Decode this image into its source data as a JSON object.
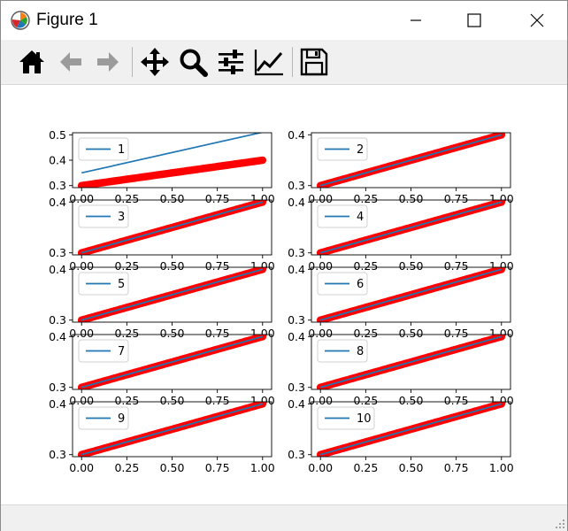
{
  "window": {
    "title": "Figure 1"
  },
  "toolbar": {
    "buttons": [
      {
        "name": "home",
        "icon": "home-icon"
      },
      {
        "name": "back",
        "icon": "arrow-left-icon"
      },
      {
        "name": "forward",
        "icon": "arrow-right-icon"
      },
      {
        "name": "pan",
        "icon": "move-icon"
      },
      {
        "name": "zoom",
        "icon": "magnifier-icon"
      },
      {
        "name": "configure-subplots",
        "icon": "sliders-icon"
      },
      {
        "name": "edit-axis",
        "icon": "line-chart-icon"
      },
      {
        "name": "save",
        "icon": "floppy-disk-icon"
      }
    ]
  },
  "colors": {
    "scatter": "#ff0000",
    "line": "#1f77b4"
  },
  "chart_data": [
    {
      "type": "scatter",
      "legend": "1",
      "xlim": [
        0,
        1
      ],
      "ylim": [
        0.3,
        0.5
      ],
      "yticks": [
        "0.3",
        "0.4",
        "0.5"
      ],
      "xticks": [
        "0.00",
        "0.25",
        "0.50",
        "0.75",
        "1.00"
      ],
      "series": [
        {
          "name": "1",
          "kind": "line",
          "x": [
            0,
            1
          ],
          "y": [
            0.35,
            0.51
          ]
        },
        {
          "kind": "scatter",
          "x": [
            0,
            1
          ],
          "y": [
            0.3,
            0.4
          ]
        }
      ]
    },
    {
      "type": "scatter",
      "legend": "2",
      "xlim": [
        0,
        1
      ],
      "ylim": [
        0.3,
        0.4
      ],
      "yticks": [
        "0.3",
        "0.4"
      ],
      "xticks": [
        "0.00",
        "0.25",
        "0.50",
        "0.75",
        "1.00"
      ],
      "series": [
        {
          "name": "2",
          "kind": "line",
          "x": [
            0,
            1
          ],
          "y": [
            0.3,
            0.4
          ]
        },
        {
          "kind": "scatter",
          "x": [
            0,
            1
          ],
          "y": [
            0.3,
            0.4
          ]
        }
      ]
    },
    {
      "type": "scatter",
      "legend": "3",
      "xlim": [
        0,
        1
      ],
      "ylim": [
        0.3,
        0.4
      ],
      "yticks": [
        "0.3",
        "0.4"
      ],
      "xticks": [
        "0.00",
        "0.25",
        "0.50",
        "0.75",
        "1.00"
      ],
      "series": [
        {
          "name": "3",
          "kind": "line",
          "x": [
            0,
            1
          ],
          "y": [
            0.3,
            0.4
          ]
        },
        {
          "kind": "scatter",
          "x": [
            0,
            1
          ],
          "y": [
            0.3,
            0.4
          ]
        }
      ]
    },
    {
      "type": "scatter",
      "legend": "4",
      "xlim": [
        0,
        1
      ],
      "ylim": [
        0.3,
        0.4
      ],
      "yticks": [
        "0.3",
        "0.4"
      ],
      "xticks": [
        "0.00",
        "0.25",
        "0.50",
        "0.75",
        "1.00"
      ],
      "series": [
        {
          "name": "4",
          "kind": "line",
          "x": [
            0,
            1
          ],
          "y": [
            0.3,
            0.4
          ]
        },
        {
          "kind": "scatter",
          "x": [
            0,
            1
          ],
          "y": [
            0.3,
            0.4
          ]
        }
      ]
    },
    {
      "type": "scatter",
      "legend": "5",
      "xlim": [
        0,
        1
      ],
      "ylim": [
        0.3,
        0.4
      ],
      "yticks": [
        "0.3",
        "0.4"
      ],
      "xticks": [
        "0.00",
        "0.25",
        "0.50",
        "0.75",
        "1.00"
      ],
      "series": [
        {
          "name": "5",
          "kind": "line",
          "x": [
            0,
            1
          ],
          "y": [
            0.3,
            0.4
          ]
        },
        {
          "kind": "scatter",
          "x": [
            0,
            1
          ],
          "y": [
            0.3,
            0.4
          ]
        }
      ]
    },
    {
      "type": "scatter",
      "legend": "6",
      "xlim": [
        0,
        1
      ],
      "ylim": [
        0.3,
        0.4
      ],
      "yticks": [
        "0.3",
        "0.4"
      ],
      "xticks": [
        "0.00",
        "0.25",
        "0.50",
        "0.75",
        "1.00"
      ],
      "series": [
        {
          "name": "6",
          "kind": "line",
          "x": [
            0,
            1
          ],
          "y": [
            0.3,
            0.4
          ]
        },
        {
          "kind": "scatter",
          "x": [
            0,
            1
          ],
          "y": [
            0.3,
            0.4
          ]
        }
      ]
    },
    {
      "type": "scatter",
      "legend": "7",
      "xlim": [
        0,
        1
      ],
      "ylim": [
        0.3,
        0.4
      ],
      "yticks": [
        "0.3",
        "0.4"
      ],
      "xticks": [
        "0.00",
        "0.25",
        "0.50",
        "0.75",
        "1.00"
      ],
      "series": [
        {
          "name": "7",
          "kind": "line",
          "x": [
            0,
            1
          ],
          "y": [
            0.3,
            0.4
          ]
        },
        {
          "kind": "scatter",
          "x": [
            0,
            1
          ],
          "y": [
            0.3,
            0.4
          ]
        }
      ]
    },
    {
      "type": "scatter",
      "legend": "8",
      "xlim": [
        0,
        1
      ],
      "ylim": [
        0.3,
        0.4
      ],
      "yticks": [
        "0.3",
        "0.4"
      ],
      "xticks": [
        "0.00",
        "0.25",
        "0.50",
        "0.75",
        "1.00"
      ],
      "series": [
        {
          "name": "8",
          "kind": "line",
          "x": [
            0,
            1
          ],
          "y": [
            0.3,
            0.4
          ]
        },
        {
          "kind": "scatter",
          "x": [
            0,
            1
          ],
          "y": [
            0.3,
            0.4
          ]
        }
      ]
    },
    {
      "type": "scatter",
      "legend": "9",
      "xlim": [
        0,
        1
      ],
      "ylim": [
        0.3,
        0.4
      ],
      "yticks": [
        "0.3",
        "0.4"
      ],
      "xticks": [
        "0.00",
        "0.25",
        "0.50",
        "0.75",
        "1.00"
      ],
      "series": [
        {
          "name": "9",
          "kind": "line",
          "x": [
            0,
            1
          ],
          "y": [
            0.3,
            0.4
          ]
        },
        {
          "kind": "scatter",
          "x": [
            0,
            1
          ],
          "y": [
            0.3,
            0.4
          ]
        }
      ]
    },
    {
      "type": "scatter",
      "legend": "10",
      "xlim": [
        0,
        1
      ],
      "ylim": [
        0.3,
        0.4
      ],
      "yticks": [
        "0.3",
        "0.4"
      ],
      "xticks": [
        "0.00",
        "0.25",
        "0.50",
        "0.75",
        "1.00"
      ],
      "series": [
        {
          "name": "10",
          "kind": "line",
          "x": [
            0,
            1
          ],
          "y": [
            0.3,
            0.4
          ]
        },
        {
          "kind": "scatter",
          "x": [
            0,
            1
          ],
          "y": [
            0.3,
            0.4
          ]
        }
      ]
    }
  ]
}
